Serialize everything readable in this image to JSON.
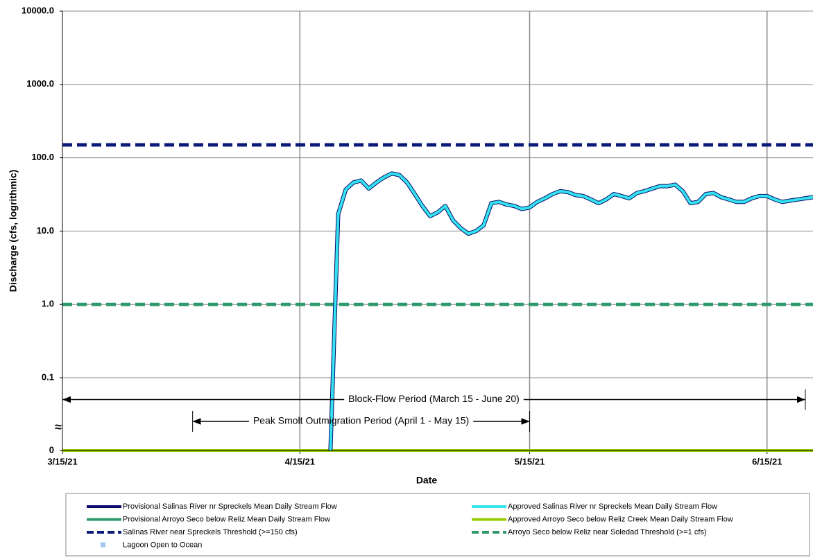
{
  "chart_data": {
    "type": "line",
    "xlabel": "Date",
    "ylabel": "Discharge (cfs, logrithmic)",
    "log_scale": true,
    "axis_break": true,
    "grid": true,
    "legend_position": "bottom",
    "xlim": [
      "2021-03-15",
      "2021-06-21"
    ],
    "xticks": [
      {
        "value": "2021-03-15",
        "label": "3/15/21"
      },
      {
        "value": "2021-04-15",
        "label": "4/15/21"
      },
      {
        "value": "2021-05-15",
        "label": "5/15/21"
      },
      {
        "value": "2021-06-15",
        "label": "6/15/21"
      }
    ],
    "ylim": [
      0,
      10000
    ],
    "yticks": [
      0,
      0.1,
      {
        "value": 1,
        "label": "1.0"
      },
      {
        "value": 10,
        "label": "10.0"
      },
      {
        "value": 100,
        "label": "100.0"
      },
      {
        "value": 1000,
        "label": "1000.0"
      },
      {
        "value": 10000,
        "label": "10000.0"
      }
    ],
    "x": [
      "2021-03-15",
      "2021-03-16",
      "2021-03-17",
      "2021-03-18",
      "2021-03-19",
      "2021-03-20",
      "2021-03-21",
      "2021-03-22",
      "2021-03-23",
      "2021-03-24",
      "2021-03-25",
      "2021-03-26",
      "2021-03-27",
      "2021-03-28",
      "2021-03-29",
      "2021-03-30",
      "2021-03-31",
      "2021-04-01",
      "2021-04-02",
      "2021-04-03",
      "2021-04-04",
      "2021-04-05",
      "2021-04-06",
      "2021-04-07",
      "2021-04-08",
      "2021-04-09",
      "2021-04-10",
      "2021-04-11",
      "2021-04-12",
      "2021-04-13",
      "2021-04-14",
      "2021-04-15",
      "2021-04-16",
      "2021-04-17",
      "2021-04-18",
      "2021-04-19",
      "2021-04-20",
      "2021-04-21",
      "2021-04-22",
      "2021-04-23",
      "2021-04-24",
      "2021-04-25",
      "2021-04-26",
      "2021-04-27",
      "2021-04-28",
      "2021-04-29",
      "2021-04-30",
      "2021-05-01",
      "2021-05-02",
      "2021-05-03",
      "2021-05-04",
      "2021-05-05",
      "2021-05-06",
      "2021-05-07",
      "2021-05-08",
      "2021-05-09",
      "2021-05-10",
      "2021-05-11",
      "2021-05-12",
      "2021-05-13",
      "2021-05-14",
      "2021-05-15",
      "2021-05-16",
      "2021-05-17",
      "2021-05-18",
      "2021-05-19",
      "2021-05-20",
      "2021-05-21",
      "2021-05-22",
      "2021-05-23",
      "2021-05-24",
      "2021-05-25",
      "2021-05-26",
      "2021-05-27",
      "2021-05-28",
      "2021-05-29",
      "2021-05-30",
      "2021-05-31",
      "2021-06-01",
      "2021-06-02",
      "2021-06-03",
      "2021-06-04",
      "2021-06-05",
      "2021-06-06",
      "2021-06-07",
      "2021-06-08",
      "2021-06-09",
      "2021-06-10",
      "2021-06-11",
      "2021-06-12",
      "2021-06-13",
      "2021-06-14",
      "2021-06-15",
      "2021-06-16",
      "2021-06-17",
      "2021-06-18",
      "2021-06-19",
      "2021-06-20",
      "2021-06-21"
    ],
    "series": [
      {
        "name": "Provisional Salinas River nr Spreckels Mean Daily Stream Flow",
        "color": "#0a0a6e",
        "width": 6,
        "values": [
          null,
          null,
          null,
          null,
          null,
          null,
          null,
          null,
          null,
          null,
          null,
          null,
          null,
          null,
          null,
          null,
          null,
          null,
          null,
          null,
          null,
          null,
          null,
          null,
          null,
          null,
          null,
          null,
          null,
          null,
          null,
          null,
          null,
          null,
          null,
          0,
          17,
          37,
          46,
          49,
          38,
          46,
          54,
          61,
          58,
          46,
          32,
          22,
          16,
          18,
          22,
          14,
          11,
          9.2,
          10,
          12,
          24,
          25,
          23,
          22,
          20,
          21,
          25,
          28,
          32,
          35,
          34,
          31,
          30,
          27,
          24,
          27,
          32,
          30,
          28,
          33,
          35,
          38,
          41,
          41,
          43,
          35,
          24,
          25,
          32,
          33,
          29,
          27,
          25,
          25,
          28,
          30,
          30,
          27,
          25,
          26,
          27,
          28,
          29
        ]
      },
      {
        "name": "Approved Salinas River nr Spreckels Mean Daily Stream Flow",
        "color": "#33e3ee",
        "width": 4,
        "values": [
          null,
          null,
          null,
          null,
          null,
          null,
          null,
          null,
          null,
          null,
          null,
          null,
          null,
          null,
          null,
          null,
          null,
          null,
          null,
          null,
          null,
          null,
          null,
          null,
          null,
          null,
          null,
          null,
          null,
          null,
          null,
          null,
          null,
          null,
          null,
          0,
          17,
          37,
          46,
          49,
          38,
          46,
          54,
          61,
          58,
          46,
          32,
          22,
          16,
          18,
          22,
          14,
          11,
          9.2,
          10,
          12,
          24,
          25,
          23,
          22,
          20,
          21,
          25,
          28,
          32,
          35,
          34,
          31,
          30,
          27,
          24,
          27,
          32,
          30,
          28,
          33,
          35,
          38,
          41,
          41,
          43,
          35,
          24,
          25,
          32,
          33,
          29,
          27,
          25,
          25,
          28,
          30,
          30,
          27,
          25,
          26,
          27,
          28,
          29
        ]
      },
      {
        "name": "Provisional  Arroyo Seco below Reliz Mean Daily Stream Flow",
        "color": "#2e9a6b",
        "width": 4,
        "values": [
          0,
          0,
          0,
          0,
          0,
          0,
          0,
          0,
          0,
          0,
          0,
          0,
          0,
          0,
          0,
          0,
          0,
          0,
          0,
          0,
          0,
          0,
          0,
          0,
          0,
          0,
          0,
          0,
          0,
          0,
          0,
          0,
          0,
          0,
          0,
          0,
          0,
          0,
          0,
          0,
          0,
          0,
          0,
          0,
          0,
          0,
          0,
          0,
          0,
          0,
          0,
          0,
          0,
          0,
          0,
          0,
          0,
          0,
          0,
          0,
          0,
          0,
          0,
          0,
          0,
          0,
          0,
          0,
          0,
          0,
          0,
          0,
          0,
          0,
          0,
          0,
          0,
          0,
          0,
          0,
          0,
          0,
          0,
          0,
          0,
          0,
          0,
          0,
          0,
          0,
          0,
          0,
          0,
          0,
          0,
          0,
          0,
          0,
          0
        ]
      },
      {
        "name": "Approved Arroyo Seco below Reliz Creek Mean Daily Stream Flow",
        "color": "#99cc00",
        "width": 4,
        "values": [
          0,
          0,
          0,
          0,
          0,
          0,
          0,
          0,
          0,
          0,
          0,
          0,
          0,
          0,
          0,
          0,
          0,
          0,
          0,
          0,
          0,
          0,
          0,
          0,
          0,
          0,
          0,
          0,
          0,
          0,
          0,
          0,
          0,
          0,
          0,
          0,
          0,
          0,
          0,
          0,
          0,
          0,
          0,
          0,
          0,
          0,
          0,
          0,
          0,
          0,
          0,
          0,
          0,
          0,
          0,
          0,
          0,
          0,
          0,
          0,
          0,
          0,
          0,
          0,
          0,
          0,
          0,
          0,
          0,
          0,
          0,
          0,
          0,
          0,
          0,
          0,
          0,
          0,
          0,
          0,
          0,
          0,
          0,
          0,
          0,
          0,
          0,
          0,
          0,
          0,
          0,
          0,
          0,
          0,
          0,
          0,
          0,
          0,
          0
        ]
      }
    ],
    "thresholds": [
      {
        "name": "Salinas River near Spreckels Threshold (>=150 cfs)",
        "value": 150,
        "color": "#0a1a78"
      },
      {
        "name": "Arroyo Seco below Reliz near Soledad Threshold (>=1 cfs)",
        "value": 1,
        "color": "#2e9a6b"
      }
    ],
    "bands": [
      {
        "name": "Lagoon Open to Ocean",
        "color": "#9dc8f0",
        "periods": []
      }
    ],
    "annotations": [
      {
        "text": "Block-Flow Period (March 15 - June 20)",
        "start": "2021-03-15",
        "end": "2021-06-20",
        "y": 0.07
      },
      {
        "text": "Peak Smolt Outmigration Period (April 1 - May 15)",
        "start": "2021-04-01",
        "end": "2021-05-15",
        "y": 0.04
      }
    ]
  }
}
